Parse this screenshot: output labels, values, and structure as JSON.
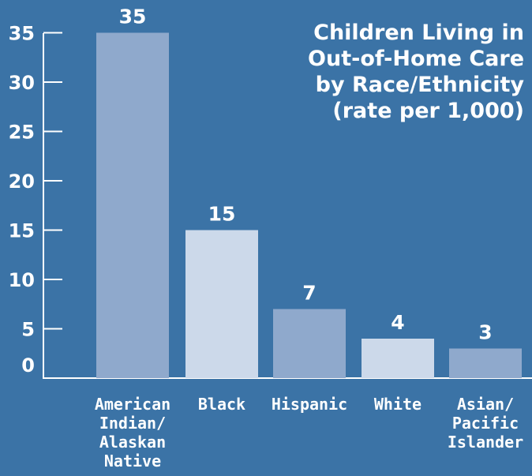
{
  "chart_data": {
    "type": "bar",
    "title_lines": [
      "Children Living in",
      "Out-of-Home Care",
      "by Race/Ethnicity",
      "(rate per 1,000)"
    ],
    "categories": [
      [
        "American",
        "Indian/",
        "Alaskan",
        "Native"
      ],
      [
        "Black"
      ],
      [
        "Hispanic"
      ],
      [
        "White"
      ],
      [
        "Asian/",
        "Pacific",
        "Islander"
      ]
    ],
    "values": [
      35,
      15,
      7,
      4,
      3
    ],
    "data_labels": [
      "35",
      "15",
      "7",
      "4",
      "3"
    ],
    "y_ticks": [
      0,
      5,
      10,
      15,
      20,
      25,
      30,
      35
    ],
    "ylim": [
      0,
      35
    ],
    "grid": false,
    "colors": {
      "background": "#3b73a6",
      "axis": "#ffffff",
      "bar_dark": "#8fa9cc",
      "bar_light": "#ccd9ea",
      "text": "#ffffff"
    }
  }
}
